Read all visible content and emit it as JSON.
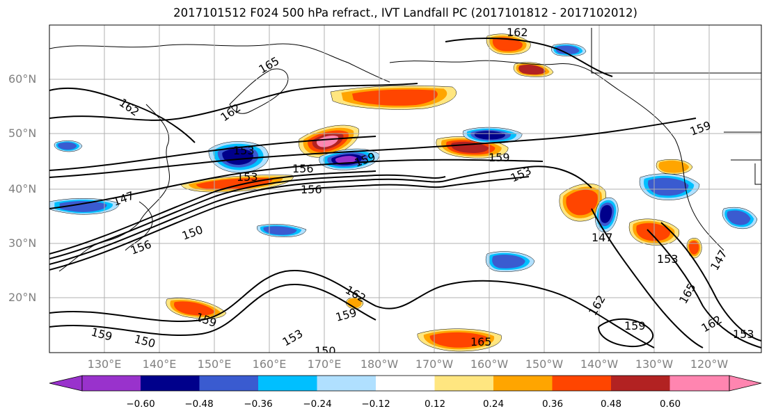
{
  "title": "2017101512 F024 500 hPa refract., IVT Landfall PC (2017101812 - 2017102012)",
  "lat_labels": [
    "60°N",
    "50°N",
    "40°N",
    "30°N",
    "20°N"
  ],
  "lon_labels": [
    "130°E",
    "140°E",
    "150°E",
    "160°E",
    "170°E",
    "180°W",
    "170°W",
    "160°W",
    "150°W",
    "140°W",
    "130°W",
    "120°W"
  ],
  "contour_labels": [
    "162",
    "165",
    "162",
    "162",
    "153",
    "156",
    "159",
    "153",
    "156",
    "159",
    "153",
    "147",
    "150",
    "156",
    "147",
    "153",
    "147",
    "162",
    "165",
    "159",
    "159",
    "162",
    "159",
    "150",
    "153",
    "150",
    "159",
    "162",
    "153",
    "159",
    "165"
  ],
  "colorbar": {
    "ticks": [
      "−0.60",
      "−0.48",
      "−0.36",
      "−0.24",
      "−0.12",
      "0.12",
      "0.24",
      "0.36",
      "0.48",
      "0.60"
    ],
    "colors": [
      "#9932cc",
      "#00008b",
      "#3a5bd0",
      "#00bfff",
      "#b0e0ff",
      "#ffffff",
      "#ffe680",
      "#ffa500",
      "#ff4500",
      "#b22222",
      "#ff85b0"
    ]
  }
}
